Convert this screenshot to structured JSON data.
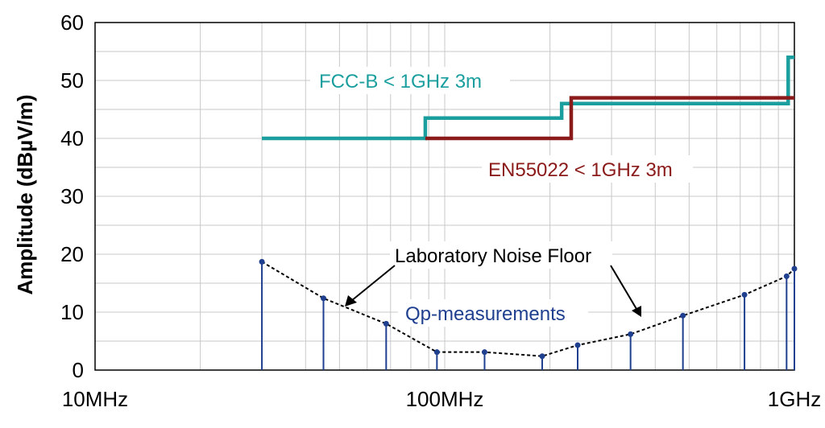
{
  "chart_data": {
    "type": "line",
    "x_scale": "log",
    "xlim": [
      "10MHz",
      "1GHz"
    ],
    "ylim": [
      0,
      60
    ],
    "ylabel": "Amplitude (dBµV/m)",
    "x_tick_labels": [
      "10MHz",
      "100MHz",
      "1GHz"
    ],
    "y_ticks": [
      0,
      10,
      20,
      30,
      40,
      50,
      60
    ],
    "grid": true,
    "colors": {
      "fcc": "#1a9e9e",
      "en": "#8b1a1a",
      "noise_dashed": "#000000",
      "qp": "#1f3f8f"
    },
    "series": [
      {
        "name": "FCC-B < 1GHz 3m",
        "kind": "step",
        "x_mhz": [
          30,
          88,
          88,
          216,
          216,
          960,
          960,
          1000
        ],
        "y": [
          40,
          40,
          43.5,
          43.5,
          46,
          46,
          54,
          54
        ]
      },
      {
        "name": "EN55022 < 1GHz 3m",
        "kind": "step",
        "x_mhz": [
          88,
          230,
          230,
          1000
        ],
        "y": [
          40,
          40,
          47,
          47
        ]
      },
      {
        "name": "Laboratory Noise Floor",
        "kind": "dashed",
        "x_mhz": [
          30,
          45,
          68,
          95,
          130,
          190,
          240,
          340,
          480,
          720,
          950,
          1000
        ],
        "y": [
          18.7,
          12.4,
          8,
          3.1,
          3.1,
          2.4,
          4.3,
          6.2,
          9.4,
          13,
          16.2,
          17.5
        ]
      },
      {
        "name": "Qp-measurements",
        "kind": "stem",
        "x_mhz": [
          30,
          45,
          68,
          95,
          130,
          190,
          240,
          340,
          480,
          720,
          950,
          1000
        ],
        "y": [
          18.7,
          12.4,
          8,
          3.1,
          3.1,
          2.4,
          4.3,
          6.2,
          9.4,
          13,
          16.2,
          17.5
        ]
      }
    ],
    "annotations": {
      "fcc_label": "FCC-B < 1GHz 3m",
      "en_label": "EN55022 < 1GHz 3m",
      "noise_label": "Laboratory Noise Floor",
      "qp_label": "Qp-measurements"
    }
  }
}
